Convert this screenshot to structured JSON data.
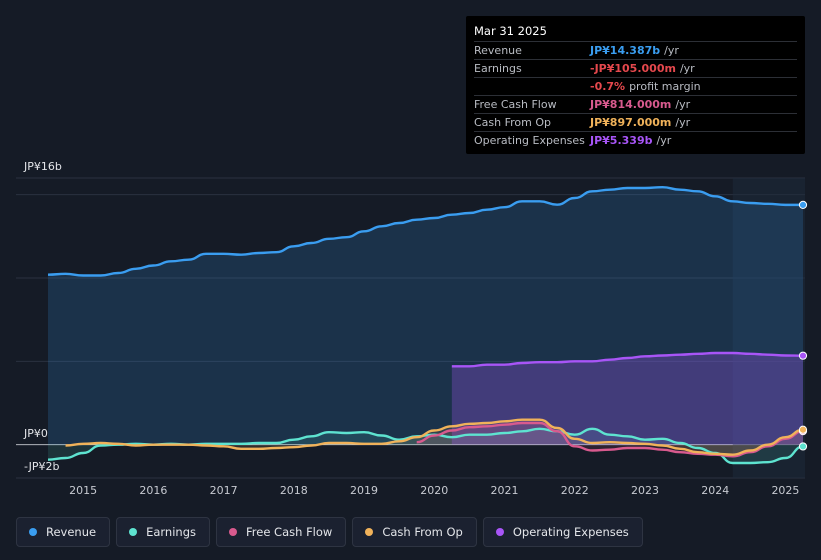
{
  "chart_data": {
    "type": "area",
    "y_axis": {
      "top_label": "JP¥16b",
      "zero_label": "JP¥0",
      "bottom_label": "-JP¥2b",
      "ylim": [
        -2,
        16
      ],
      "unit": "JP¥ billions"
    },
    "x_ticks": [
      "2015",
      "2016",
      "2017",
      "2018",
      "2019",
      "2020",
      "2021",
      "2022",
      "2023",
      "2024",
      "2025"
    ],
    "xlim": [
      2014.5,
      2025.25
    ],
    "highlight_from": 2024.25,
    "series": [
      {
        "name": "Revenue",
        "color": "#3a9df0",
        "fill": true,
        "points": [
          [
            2014.5,
            10.2
          ],
          [
            2014.75,
            10.25
          ],
          [
            2015.0,
            10.15
          ],
          [
            2015.25,
            10.15
          ],
          [
            2015.5,
            10.3
          ],
          [
            2015.75,
            10.55
          ],
          [
            2016.0,
            10.75
          ],
          [
            2016.25,
            11.0
          ],
          [
            2016.5,
            11.1
          ],
          [
            2016.75,
            11.45
          ],
          [
            2017.0,
            11.45
          ],
          [
            2017.25,
            11.4
          ],
          [
            2017.5,
            11.5
          ],
          [
            2017.75,
            11.55
          ],
          [
            2018.0,
            11.9
          ],
          [
            2018.25,
            12.1
          ],
          [
            2018.5,
            12.35
          ],
          [
            2018.75,
            12.45
          ],
          [
            2019.0,
            12.8
          ],
          [
            2019.25,
            13.1
          ],
          [
            2019.5,
            13.3
          ],
          [
            2019.75,
            13.5
          ],
          [
            2020.0,
            13.6
          ],
          [
            2020.25,
            13.8
          ],
          [
            2020.5,
            13.9
          ],
          [
            2020.75,
            14.1
          ],
          [
            2021.0,
            14.25
          ],
          [
            2021.25,
            14.6
          ],
          [
            2021.5,
            14.6
          ],
          [
            2021.75,
            14.4
          ],
          [
            2022.0,
            14.8
          ],
          [
            2022.25,
            15.2
          ],
          [
            2022.5,
            15.3
          ],
          [
            2022.75,
            15.4
          ],
          [
            2023.0,
            15.4
          ],
          [
            2023.25,
            15.45
          ],
          [
            2023.5,
            15.3
          ],
          [
            2023.75,
            15.2
          ],
          [
            2024.0,
            14.9
          ],
          [
            2024.25,
            14.6
          ],
          [
            2024.5,
            14.5
          ],
          [
            2024.75,
            14.45
          ],
          [
            2025.0,
            14.387
          ],
          [
            2025.25,
            14.387
          ]
        ]
      },
      {
        "name": "Earnings",
        "color": "#5ee3d0",
        "fill": false,
        "points": [
          [
            2014.5,
            -0.9
          ],
          [
            2014.75,
            -0.8
          ],
          [
            2015.0,
            -0.5
          ],
          [
            2015.25,
            -0.05
          ],
          [
            2015.5,
            0.0
          ],
          [
            2015.75,
            0.05
          ],
          [
            2016.0,
            0.0
          ],
          [
            2016.25,
            0.05
          ],
          [
            2016.5,
            0.0
          ],
          [
            2016.75,
            0.05
          ],
          [
            2017.0,
            0.05
          ],
          [
            2017.25,
            0.05
          ],
          [
            2017.5,
            0.1
          ],
          [
            2017.75,
            0.1
          ],
          [
            2018.0,
            0.3
          ],
          [
            2018.25,
            0.5
          ],
          [
            2018.5,
            0.75
          ],
          [
            2018.75,
            0.7
          ],
          [
            2019.0,
            0.75
          ],
          [
            2019.25,
            0.55
          ],
          [
            2019.5,
            0.3
          ],
          [
            2019.75,
            0.5
          ],
          [
            2020.0,
            0.6
          ],
          [
            2020.25,
            0.45
          ],
          [
            2020.5,
            0.6
          ],
          [
            2020.75,
            0.6
          ],
          [
            2021.0,
            0.7
          ],
          [
            2021.25,
            0.8
          ],
          [
            2021.5,
            0.95
          ],
          [
            2021.75,
            0.8
          ],
          [
            2022.0,
            0.6
          ],
          [
            2022.25,
            0.95
          ],
          [
            2022.5,
            0.6
          ],
          [
            2022.75,
            0.5
          ],
          [
            2023.0,
            0.3
          ],
          [
            2023.25,
            0.35
          ],
          [
            2023.5,
            0.1
          ],
          [
            2023.75,
            -0.2
          ],
          [
            2024.0,
            -0.5
          ],
          [
            2024.25,
            -1.1
          ],
          [
            2024.5,
            -1.1
          ],
          [
            2024.75,
            -1.05
          ],
          [
            2025.0,
            -0.8
          ],
          [
            2025.25,
            -0.105
          ]
        ]
      },
      {
        "name": "Free Cash Flow",
        "color": "#d85a8e",
        "fill": false,
        "points": [
          [
            2019.75,
            0.15
          ],
          [
            2020.0,
            0.55
          ],
          [
            2020.25,
            0.85
          ],
          [
            2020.5,
            1.05
          ],
          [
            2020.75,
            1.1
          ],
          [
            2021.0,
            1.2
          ],
          [
            2021.25,
            1.3
          ],
          [
            2021.5,
            1.3
          ],
          [
            2021.75,
            0.8
          ],
          [
            2022.0,
            -0.1
          ],
          [
            2022.25,
            -0.35
          ],
          [
            2022.5,
            -0.3
          ],
          [
            2022.75,
            -0.2
          ],
          [
            2023.0,
            -0.2
          ],
          [
            2023.25,
            -0.3
          ],
          [
            2023.5,
            -0.45
          ],
          [
            2023.75,
            -0.55
          ],
          [
            2024.0,
            -0.6
          ],
          [
            2024.25,
            -0.7
          ],
          [
            2024.5,
            -0.45
          ],
          [
            2024.75,
            -0.1
          ],
          [
            2025.0,
            0.35
          ],
          [
            2025.25,
            0.814
          ]
        ]
      },
      {
        "name": "Cash From Op",
        "color": "#f0b25a",
        "fill": false,
        "points": [
          [
            2014.75,
            -0.05
          ],
          [
            2015.0,
            0.05
          ],
          [
            2015.25,
            0.1
          ],
          [
            2015.5,
            0.05
          ],
          [
            2015.75,
            -0.05
          ],
          [
            2016.0,
            0.0
          ],
          [
            2016.25,
            0.0
          ],
          [
            2016.5,
            0.0
          ],
          [
            2016.75,
            -0.05
          ],
          [
            2017.0,
            -0.1
          ],
          [
            2017.25,
            -0.25
          ],
          [
            2017.5,
            -0.25
          ],
          [
            2017.75,
            -0.2
          ],
          [
            2018.0,
            -0.15
          ],
          [
            2018.25,
            -0.05
          ],
          [
            2018.5,
            0.1
          ],
          [
            2018.75,
            0.1
          ],
          [
            2019.0,
            0.05
          ],
          [
            2019.25,
            0.05
          ],
          [
            2019.5,
            0.2
          ],
          [
            2019.75,
            0.45
          ],
          [
            2020.0,
            0.85
          ],
          [
            2020.25,
            1.1
          ],
          [
            2020.5,
            1.25
          ],
          [
            2020.75,
            1.3
          ],
          [
            2021.0,
            1.4
          ],
          [
            2021.25,
            1.5
          ],
          [
            2021.5,
            1.5
          ],
          [
            2021.75,
            1.0
          ],
          [
            2022.0,
            0.35
          ],
          [
            2022.25,
            0.1
          ],
          [
            2022.5,
            0.15
          ],
          [
            2022.75,
            0.1
          ],
          [
            2023.0,
            0.05
          ],
          [
            2023.25,
            -0.05
          ],
          [
            2023.5,
            -0.25
          ],
          [
            2023.75,
            -0.45
          ],
          [
            2024.0,
            -0.55
          ],
          [
            2024.25,
            -0.6
          ],
          [
            2024.5,
            -0.35
          ],
          [
            2024.75,
            0.0
          ],
          [
            2025.0,
            0.45
          ],
          [
            2025.25,
            0.897
          ]
        ]
      },
      {
        "name": "Operating Expenses",
        "color": "#a855f7",
        "fill": true,
        "points": [
          [
            2020.25,
            4.7
          ],
          [
            2020.5,
            4.7
          ],
          [
            2020.75,
            4.8
          ],
          [
            2021.0,
            4.8
          ],
          [
            2021.25,
            4.9
          ],
          [
            2021.5,
            4.95
          ],
          [
            2021.75,
            4.95
          ],
          [
            2022.0,
            5.0
          ],
          [
            2022.25,
            5.0
          ],
          [
            2022.5,
            5.1
          ],
          [
            2022.75,
            5.2
          ],
          [
            2023.0,
            5.3
          ],
          [
            2023.25,
            5.35
          ],
          [
            2023.5,
            5.4
          ],
          [
            2023.75,
            5.45
          ],
          [
            2024.0,
            5.5
          ],
          [
            2024.25,
            5.5
          ],
          [
            2024.5,
            5.45
          ],
          [
            2024.75,
            5.4
          ],
          [
            2025.0,
            5.35
          ],
          [
            2025.25,
            5.339
          ]
        ]
      }
    ]
  },
  "tooltip": {
    "date": "Mar 31 2025",
    "rows": [
      {
        "label": "Revenue",
        "value": "JP¥14.387b",
        "unit": "/yr",
        "color": "#3a9df0"
      },
      {
        "label": "Earnings",
        "value": "-JP¥105.000m",
        "unit": "/yr",
        "color": "#e5484d"
      },
      {
        "label": "",
        "value": "-0.7%",
        "unit": "profit margin",
        "color": "#e5484d"
      },
      {
        "label": "Free Cash Flow",
        "value": "JP¥814.000m",
        "unit": "/yr",
        "color": "#d85a8e"
      },
      {
        "label": "Cash From Op",
        "value": "JP¥897.000m",
        "unit": "/yr",
        "color": "#f0b25a"
      },
      {
        "label": "Operating Expenses",
        "value": "JP¥5.339b",
        "unit": "/yr",
        "color": "#a855f7"
      }
    ]
  },
  "legend": [
    {
      "label": "Revenue",
      "color": "#3a9df0"
    },
    {
      "label": "Earnings",
      "color": "#5ee3d0"
    },
    {
      "label": "Free Cash Flow",
      "color": "#d85a8e"
    },
    {
      "label": "Cash From Op",
      "color": "#f0b25a"
    },
    {
      "label": "Operating Expenses",
      "color": "#a855f7"
    }
  ]
}
